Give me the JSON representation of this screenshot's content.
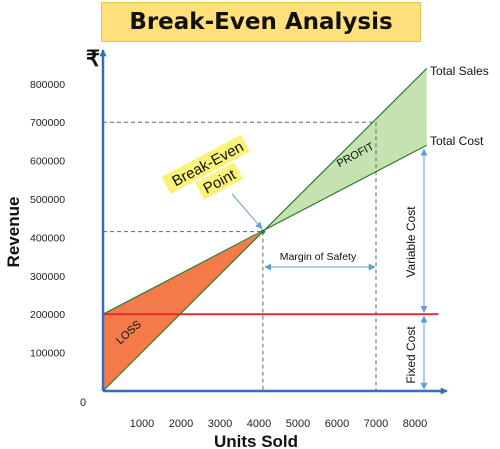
{
  "chart_data": {
    "type": "line",
    "title": "Break-Even Analysis",
    "currency_symbol": "₹",
    "xlabel": "Units Sold",
    "ylabel": "Revenue",
    "x_ticks": [
      1000,
      2000,
      3000,
      4000,
      5000,
      6000,
      7000,
      8000
    ],
    "y_ticks": [
      100000,
      200000,
      300000,
      400000,
      500000,
      600000,
      700000,
      800000
    ],
    "origin_label": "0",
    "xlim": [
      0,
      8600
    ],
    "ylim": [
      0,
      880000
    ],
    "series": [
      {
        "name": "Total Sales",
        "color": "#2f7a2f",
        "x": [
          0,
          8300
        ],
        "y": [
          0,
          840000
        ]
      },
      {
        "name": "Total Cost",
        "color": "#2f7a2f",
        "x": [
          0,
          8300
        ],
        "y": [
          200000,
          640000
        ]
      },
      {
        "name": "Fixed Cost",
        "color": "#e8262a",
        "x": [
          0,
          8600
        ],
        "y": [
          200000,
          200000
        ]
      }
    ],
    "break_even": {
      "x": 4100,
      "y": 415000
    },
    "references": {
      "margin_of_safety_units": [
        4100,
        7000
      ],
      "sales_at_7000": 700000
    },
    "regions": {
      "loss_color": "#f47a4a",
      "profit_color": "#c5e3b0"
    },
    "annotations": {
      "break_even_label": [
        "Break-Even",
        "Point"
      ],
      "loss_label": "LOSS",
      "profit_label": "PROFIT",
      "margin_label": "Margin of Safety",
      "variable_cost_label": "Variable Cost",
      "fixed_cost_label": "Fixed Cost"
    },
    "axis_color": "#2e6fc0",
    "arrow_color": "#5aa0d8"
  }
}
